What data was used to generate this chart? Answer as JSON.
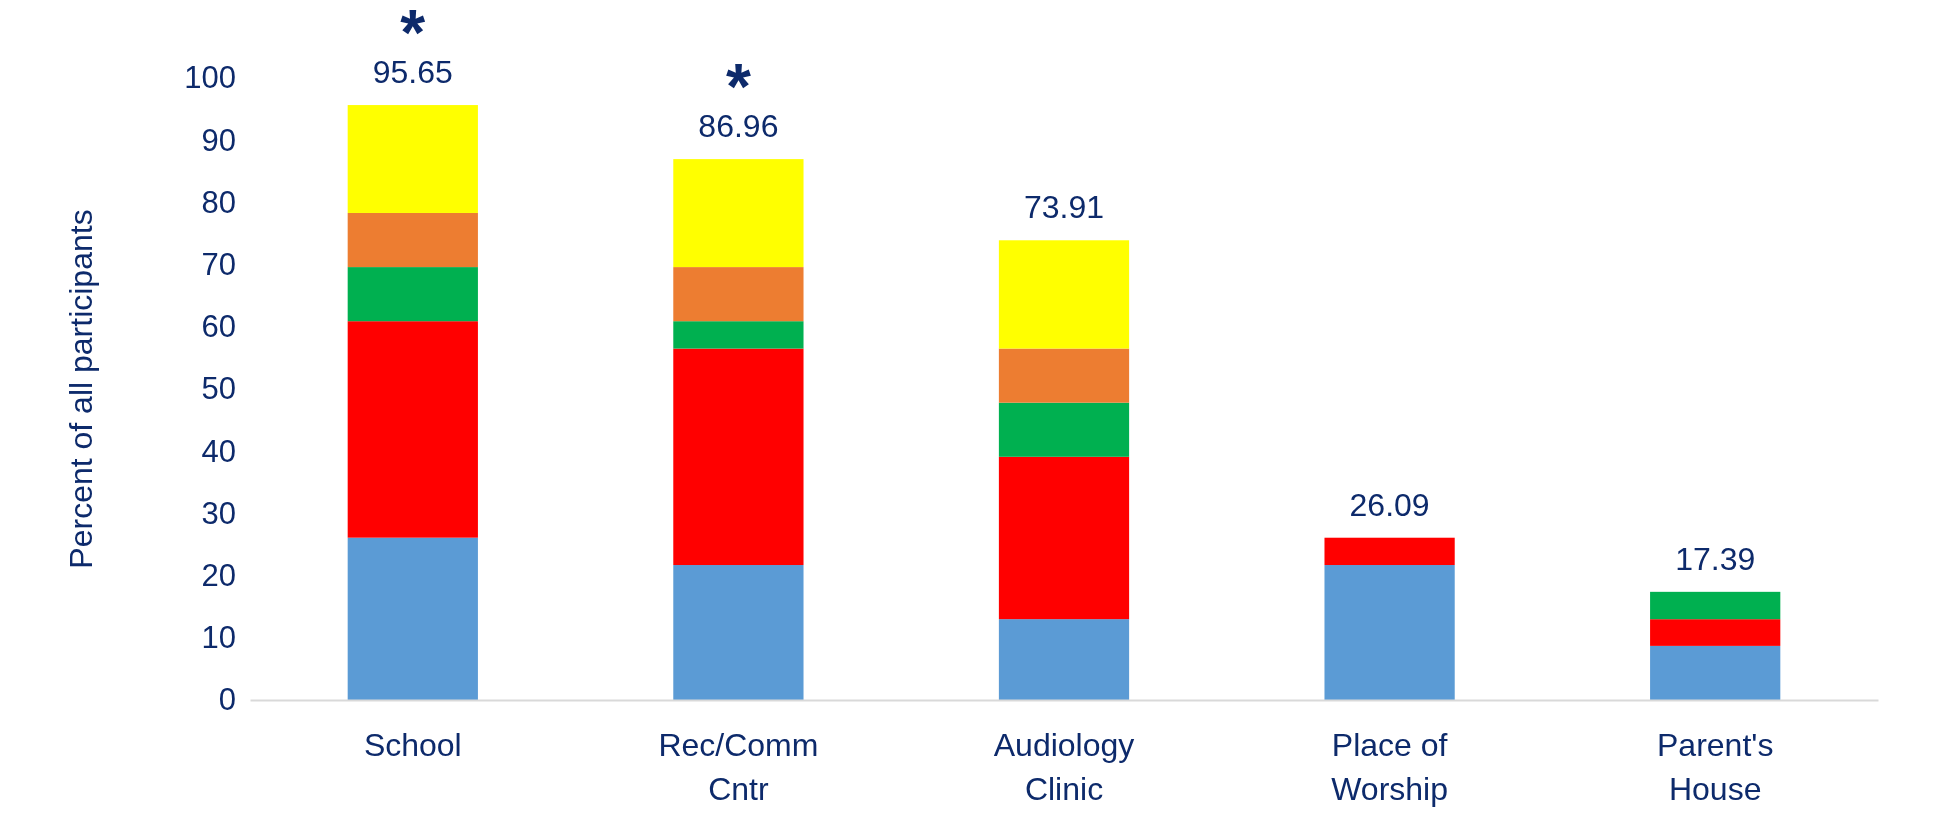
{
  "chart_data": {
    "type": "bar",
    "stacked": true,
    "ylabel": "Percent of all participants",
    "categories": [
      "School",
      "Rec/Comm Cntr",
      "Audiology Clinic",
      "Place of Worship",
      "Parent's House"
    ],
    "series": [
      {
        "color": "#5b9bd5",
        "values": [
          26.1,
          21.7,
          13,
          21.7,
          8.7
        ]
      },
      {
        "color": "#ff0000",
        "values": [
          34.8,
          34.8,
          26.1,
          4.39,
          4.29
        ]
      },
      {
        "color": "#00b050",
        "values": [
          8.7,
          4.4,
          8.7,
          null,
          4.4
        ]
      },
      {
        "color": "#ed7d31",
        "values": [
          8.7,
          8.7,
          8.7,
          null,
          null
        ]
      },
      {
        "color": "#ffff00",
        "values": [
          17.35,
          17.36,
          17.41,
          null,
          null
        ]
      }
    ],
    "totals": [
      "95.65",
      "86.96",
      "73.91",
      "26.09",
      "17.39"
    ],
    "annotations": [
      "*",
      "*"
    ],
    "ylim": [
      0,
      100
    ],
    "yticks": [
      0,
      10,
      20,
      30,
      40,
      50,
      60,
      70,
      80,
      90,
      100
    ],
    "grid": false
  }
}
